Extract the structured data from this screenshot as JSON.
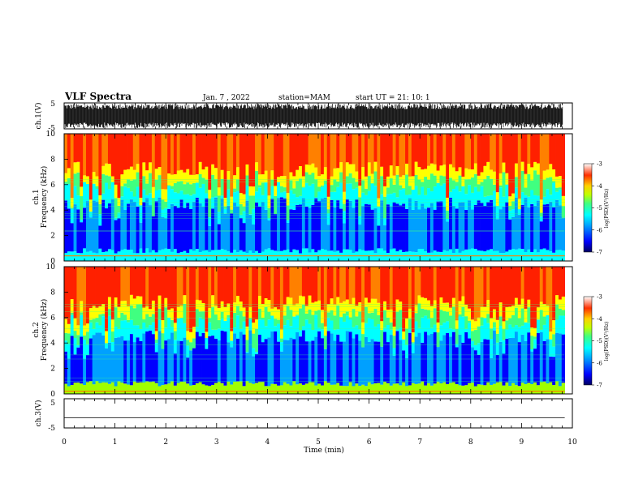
{
  "header": {
    "title": "VLF Spectra",
    "date": "Jan. 7 , 2022",
    "station": "station=MAM",
    "start": "start UT =  21: 10: 1"
  },
  "chart_data": [
    {
      "type": "line",
      "name": "ch1 waveform",
      "ylabel": "ch.1(V)",
      "ylim": [
        -5,
        5
      ],
      "yticks": [
        "5",
        "-5"
      ],
      "xlim": [
        0,
        10
      ],
      "description": "dense broadband noise nearly saturating ±5 V"
    },
    {
      "type": "heatmap",
      "name": "ch1 spectrogram",
      "ylabel_line1": "ch.1",
      "ylabel_line2": "Frequency  (kHz)",
      "ylim": [
        0,
        10
      ],
      "yticks": [
        "0",
        "2",
        "4",
        "6",
        "8",
        "10"
      ],
      "xlim": [
        0,
        10
      ],
      "colorbar": {
        "label": "log(PSD)(V²/Hz)",
        "ticks": [
          "-3",
          "-4",
          "-5",
          "-6",
          "-7"
        ],
        "range": [
          -7,
          -3
        ]
      }
    },
    {
      "type": "heatmap",
      "name": "ch2 spectrogram",
      "ylabel_line1": "ch.2",
      "ylabel_line2": "Frequency  (kHz)",
      "ylim": [
        0,
        10
      ],
      "yticks": [
        "0",
        "2",
        "4",
        "6",
        "8",
        "10"
      ],
      "xlim": [
        0,
        10
      ],
      "colorbar": {
        "label": "log(PSD)(V²/Hz)",
        "ticks": [
          "-3",
          "-4",
          "-5",
          "-6",
          "-7"
        ],
        "range": [
          -7,
          -3
        ]
      }
    },
    {
      "type": "line",
      "name": "ch3 waveform",
      "ylabel": "ch.3(V)",
      "ylim": [
        -5,
        5
      ],
      "yticks": [
        "5",
        "-5"
      ],
      "x": [
        0,
        9.85
      ],
      "y": [
        -1.5,
        -1.5
      ],
      "xlabel": "Time  (min)",
      "xlim": [
        0,
        10
      ],
      "xticks": [
        "0",
        "1",
        "2",
        "3",
        "4",
        "5",
        "6",
        "7",
        "8",
        "9",
        "10"
      ]
    }
  ],
  "colors": {
    "colormap": [
      "#000080",
      "#0000ff",
      "#00a0ff",
      "#00ffff",
      "#40ff80",
      "#a0ff00",
      "#ffff00",
      "#ff8000",
      "#ff2000"
    ],
    "ink": "#000000"
  }
}
